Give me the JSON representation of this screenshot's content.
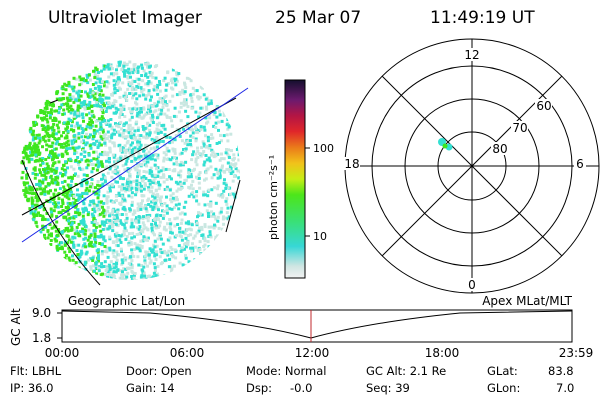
{
  "header": {
    "instrument": "Ultraviolet Imager",
    "date": "25 Mar 07",
    "time": "11:49:19 UT"
  },
  "colorbar": {
    "unit_label": "photon cm⁻²s⁻¹",
    "ticks": [
      "100",
      "10"
    ]
  },
  "polar": {
    "mlt_labels": {
      "top": "12",
      "left": "18",
      "right": "6",
      "bottom": "0"
    },
    "lat_labels": [
      "60",
      "70",
      "80"
    ]
  },
  "timeline": {
    "left_title": "Geographic Lat/Lon",
    "right_title": "Apex MLat/MLT",
    "axis_label": "GC Alt",
    "y_ticks": [
      "9.0",
      "1.8"
    ],
    "x_ticks": [
      "00:00",
      "06:00",
      "12:00",
      "18:00",
      "23:59"
    ]
  },
  "info": {
    "filter": "Flt: LBHL",
    "door": "Door: Open",
    "mode": "Mode: Normal",
    "gc_alt": "GC Alt: 2.1 Re",
    "glat": "GLat:",
    "glat_val": "83.8",
    "ip": "IP: 36.0",
    "gain": "Gain: 14",
    "dsp": "Dsp:",
    "dsp_val": "-0.0",
    "seq": "Seq: 39",
    "glon": "GLon:",
    "glon_val": "7.0"
  },
  "colors": {
    "green": "#3ee61e",
    "cyan": "#33e0d2",
    "pale": "#c9e7e1",
    "blue_line": "#1a24e6",
    "marker": "#c0282c"
  }
}
